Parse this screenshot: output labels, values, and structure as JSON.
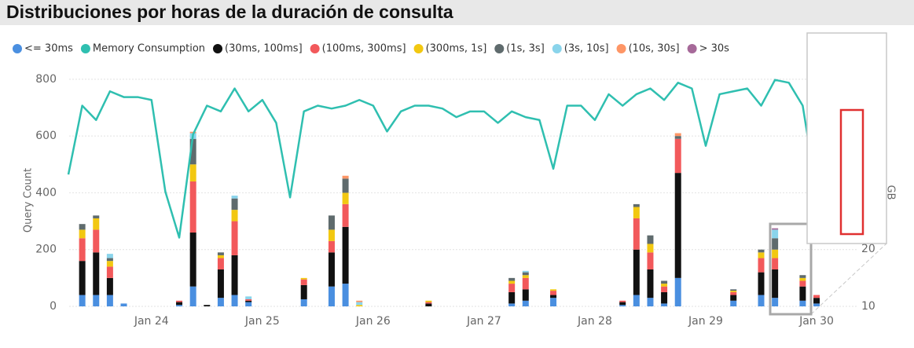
{
  "chart_data": {
    "type": "bar",
    "stacked": true,
    "title": "Distribuciones por horas de la duración de consulta",
    "y_label": "Query Count",
    "y2_label": "GB",
    "categories": [
      null,
      null,
      null,
      null,
      null,
      null,
      "Jan 24",
      null,
      null,
      null,
      null,
      null,
      null,
      null,
      "Jan 25",
      null,
      null,
      null,
      null,
      null,
      null,
      null,
      "Jan 26",
      null,
      null,
      null,
      null,
      null,
      null,
      null,
      "Jan 27",
      null,
      null,
      null,
      null,
      null,
      null,
      null,
      "Jan 28",
      null,
      null,
      null,
      null,
      null,
      null,
      null,
      "Jan 29",
      null,
      null,
      null,
      null,
      null,
      null,
      null,
      "Jan 30",
      null
    ],
    "ylim": [
      0,
      830
    ],
    "yticks": [
      0,
      200,
      400,
      600,
      800
    ],
    "y2lim": [
      10,
      51.1
    ],
    "y2ticks": [
      10,
      20
    ],
    "grid": true,
    "series": [
      {
        "name": "<= 30ms",
        "color": "#4a8fe0",
        "values": [
          0,
          40,
          40,
          40,
          10,
          0,
          0,
          0,
          5,
          70,
          0,
          30,
          40,
          15,
          0,
          0,
          0,
          25,
          0,
          70,
          80,
          0,
          0,
          0,
          0,
          0,
          0,
          0,
          0,
          0,
          0,
          0,
          10,
          20,
          0,
          30,
          0,
          0,
          0,
          0,
          5,
          40,
          30,
          10,
          100,
          0,
          0,
          0,
          20,
          0,
          40,
          30,
          0,
          20,
          10,
          0
        ]
      },
      {
        "name": "Memory Consumption",
        "color": "#2fbfb0",
        "type": "line",
        "axis": "y2",
        "values": [
          33,
          45,
          42.5,
          47.5,
          46.5,
          46.5,
          46,
          30,
          22,
          40,
          45,
          44,
          48,
          44,
          46,
          42,
          29,
          44,
          45,
          44.5,
          45,
          46,
          45,
          40.5,
          44,
          45,
          45,
          44.5,
          43,
          44,
          44,
          42,
          44,
          43,
          42.5,
          34,
          45,
          45,
          42.5,
          47,
          45,
          47,
          48,
          46,
          49,
          48,
          38,
          47,
          47.5,
          48,
          45,
          49.5,
          49,
          45,
          30,
          27.5
        ]
      },
      {
        "name": "(30ms, 100ms]",
        "color": "#111111",
        "values": [
          0,
          120,
          150,
          60,
          0,
          0,
          0,
          0,
          10,
          190,
          5,
          100,
          140,
          5,
          0,
          0,
          0,
          50,
          0,
          120,
          200,
          0,
          0,
          0,
          0,
          0,
          10,
          0,
          0,
          0,
          0,
          0,
          40,
          40,
          0,
          10,
          0,
          0,
          0,
          0,
          10,
          160,
          100,
          40,
          370,
          0,
          0,
          0,
          20,
          0,
          80,
          100,
          0,
          50,
          20,
          0
        ]
      },
      {
        "name": "(100ms, 300ms]",
        "color": "#f2595b",
        "values": [
          0,
          80,
          80,
          40,
          0,
          0,
          0,
          0,
          5,
          180,
          0,
          40,
          120,
          5,
          0,
          0,
          0,
          20,
          0,
          40,
          80,
          0,
          0,
          0,
          0,
          0,
          5,
          0,
          0,
          0,
          0,
          0,
          30,
          40,
          0,
          15,
          0,
          0,
          0,
          0,
          5,
          110,
          60,
          20,
          120,
          0,
          0,
          0,
          10,
          0,
          50,
          40,
          0,
          20,
          10,
          0
        ]
      },
      {
        "name": "(300ms, 1s]",
        "color": "#f2c811",
        "values": [
          0,
          30,
          40,
          20,
          0,
          0,
          0,
          0,
          0,
          60,
          0,
          10,
          40,
          0,
          0,
          0,
          0,
          5,
          0,
          40,
          40,
          5,
          0,
          0,
          0,
          0,
          5,
          0,
          0,
          0,
          0,
          0,
          10,
          10,
          0,
          5,
          0,
          0,
          0,
          0,
          0,
          40,
          30,
          10,
          0,
          0,
          0,
          0,
          5,
          0,
          20,
          30,
          0,
          10,
          0,
          0
        ]
      },
      {
        "name": "(1s, 3s]",
        "color": "#5f6b6d",
        "values": [
          0,
          20,
          10,
          10,
          0,
          0,
          0,
          0,
          0,
          90,
          0,
          10,
          40,
          0,
          0,
          0,
          0,
          0,
          0,
          50,
          50,
          0,
          0,
          0,
          0,
          0,
          0,
          0,
          0,
          0,
          0,
          0,
          10,
          10,
          0,
          0,
          0,
          0,
          0,
          0,
          0,
          10,
          30,
          10,
          10,
          0,
          0,
          0,
          5,
          0,
          10,
          40,
          0,
          10,
          0,
          0
        ]
      },
      {
        "name": "(3s, 10s]",
        "color": "#8ad4eb",
        "values": [
          0,
          0,
          0,
          15,
          0,
          0,
          0,
          0,
          0,
          20,
          0,
          0,
          10,
          10,
          0,
          0,
          0,
          0,
          0,
          0,
          0,
          10,
          0,
          0,
          0,
          0,
          0,
          0,
          0,
          0,
          0,
          0,
          0,
          5,
          0,
          0,
          0,
          0,
          0,
          0,
          0,
          0,
          0,
          0,
          0,
          0,
          0,
          0,
          0,
          0,
          0,
          30,
          0,
          0,
          0,
          0
        ]
      },
      {
        "name": "(10s, 30s]",
        "color": "#fe9666",
        "values": [
          0,
          0,
          0,
          0,
          0,
          0,
          0,
          0,
          0,
          5,
          0,
          0,
          0,
          0,
          0,
          0,
          0,
          0,
          0,
          0,
          10,
          5,
          0,
          0,
          0,
          0,
          0,
          0,
          0,
          0,
          0,
          0,
          0,
          0,
          0,
          0,
          0,
          0,
          0,
          0,
          0,
          0,
          0,
          0,
          10,
          0,
          0,
          0,
          0,
          0,
          0,
          0,
          0,
          0,
          0,
          0
        ]
      },
      {
        "name": "> 30s",
        "color": "#a66999",
        "values": [
          0,
          0,
          0,
          0,
          0,
          0,
          0,
          0,
          0,
          0,
          0,
          0,
          0,
          0,
          0,
          0,
          0,
          0,
          0,
          0,
          0,
          0,
          0,
          0,
          0,
          0,
          0,
          0,
          0,
          0,
          0,
          0,
          0,
          0,
          0,
          0,
          0,
          0,
          0,
          0,
          0,
          0,
          0,
          0,
          0,
          0,
          0,
          0,
          0,
          0,
          0,
          5,
          0,
          0,
          0,
          0
        ]
      }
    ]
  }
}
